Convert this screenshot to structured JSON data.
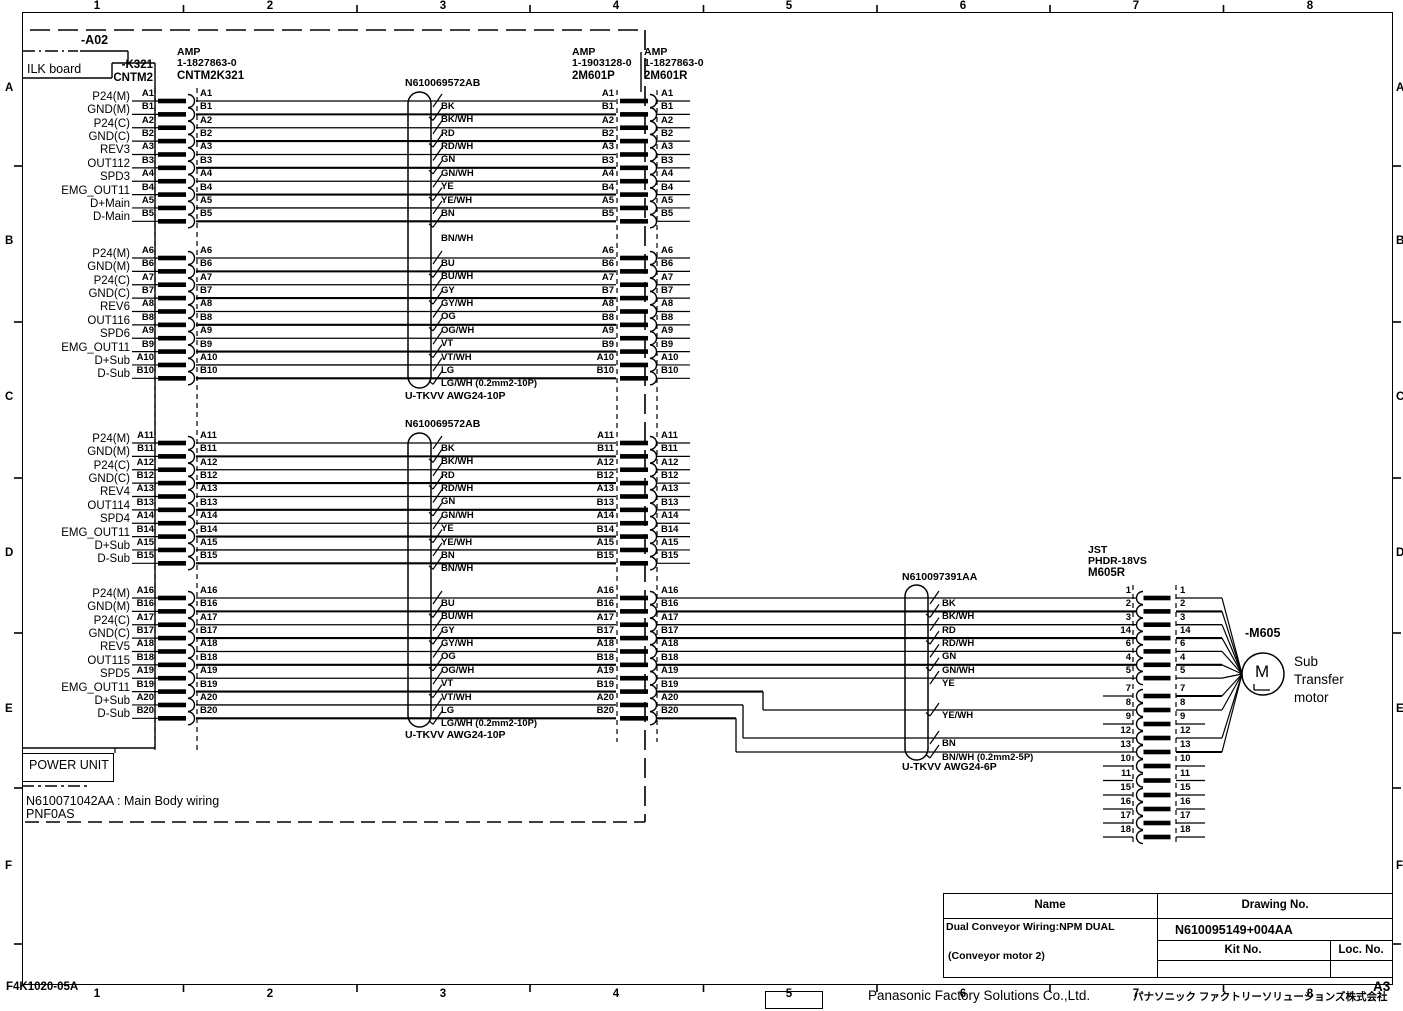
{
  "frame": {
    "zone_cols": [
      "1",
      "2",
      "3",
      "4",
      "5",
      "6",
      "7",
      "8"
    ],
    "zone_rows": [
      "A",
      "B",
      "C",
      "D",
      "E",
      "F"
    ],
    "sheet_code": "F4K1020-05A",
    "paper_size": "A3",
    "footer_company_en": "Panasonic Factory Solutions Co.,Ltd.",
    "footer_company_jp": "パナソニック ファクトリーソリューションズ株式会社"
  },
  "unit": {
    "ref": "-A02",
    "board": "ILK board",
    "power_unit": "POWER UNIT",
    "main_body_wiring": "N610071042AA : Main Body wiring",
    "board_code": "PNF0AS"
  },
  "connectors": {
    "cntm2": {
      "ref": "-K321",
      "name": "CNTM2"
    },
    "cntm2k321": {
      "maker": "AMP",
      "part": "1-1827863-0",
      "name": "CNTM2K321"
    },
    "m601p": {
      "maker": "AMP",
      "part": "1-1903128-0",
      "name": "2M601P"
    },
    "m601r": {
      "maker": "AMP",
      "part": "1-1827863-0",
      "name": "2M601R"
    },
    "m605r": {
      "maker": "JST",
      "part": "PHDR-18VS",
      "name": "M605R"
    }
  },
  "cables": {
    "cable1": {
      "part": "N610069572AB",
      "spec": "U-TKVV AWG24-10P"
    },
    "cable2": {
      "part": "N610069572AB",
      "spec": "U-TKVV AWG24-10P"
    },
    "cable3": {
      "part": "N610097391AA",
      "spec": "U-TKVV AWG24-6P"
    }
  },
  "motor": {
    "ref": "-M605",
    "symbol": "M",
    "label_lines": [
      "Sub",
      "Transfer",
      "motor"
    ]
  },
  "title_block": {
    "name_header": "Name",
    "drawing_no_header": "Drawing No.",
    "name_line1": "Dual Conveyor Wiring:NPM DUAL",
    "name_line2": "(Conveyor motor 2)",
    "drawing_no": "N610095149+004AA",
    "kit_no_header": "Kit No.",
    "loc_no_header": "Loc. No.",
    "kit_no": "",
    "loc_no": ""
  },
  "wiring_rows": [
    {
      "signal": "P24(M)",
      "pin": "A1",
      "color": "BK"
    },
    {
      "signal": "GND(M)",
      "pin": "B1",
      "color": "BK/WH"
    },
    {
      "signal": "P24(C)",
      "pin": "A2",
      "color": "RD"
    },
    {
      "signal": "GND(C)",
      "pin": "B2",
      "color": "RD/WH"
    },
    {
      "signal": "REV3",
      "pin": "A3",
      "color": "GN"
    },
    {
      "signal": "OUT112",
      "pin": "B3",
      "color": "GN/WH"
    },
    {
      "signal": "SPD3",
      "pin": "A4",
      "color": "YE"
    },
    {
      "signal": "EMG_OUT11",
      "pin": "B4",
      "color": "YE/WH"
    },
    {
      "signal": "D+Main",
      "pin": "A5",
      "color": "BN"
    },
    {
      "signal": "D-Main",
      "pin": "B5",
      "color": "BN/WH"
    },
    {
      "signal": "P24(M)",
      "pin": "A6",
      "color": "BU"
    },
    {
      "signal": "GND(M)",
      "pin": "B6",
      "color": "BU/WH"
    },
    {
      "signal": "P24(C)",
      "pin": "A7",
      "color": "GY"
    },
    {
      "signal": "GND(C)",
      "pin": "B7",
      "color": "GY/WH"
    },
    {
      "signal": "REV6",
      "pin": "A8",
      "color": "OG"
    },
    {
      "signal": "OUT116",
      "pin": "B8",
      "color": "OG/WH"
    },
    {
      "signal": "SPD6",
      "pin": "A9",
      "color": "VT"
    },
    {
      "signal": "EMG_OUT11",
      "pin": "B9",
      "color": "VT/WH"
    },
    {
      "signal": "D+Sub",
      "pin": "A10",
      "color": "LG"
    },
    {
      "signal": "D-Sub",
      "pin": "B10",
      "color": "LG/WH (0.2mm2-10P)"
    },
    {
      "signal": "P24(M)",
      "pin": "A11",
      "color": "BK"
    },
    {
      "signal": "GND(M)",
      "pin": "B11",
      "color": "BK/WH"
    },
    {
      "signal": "P24(C)",
      "pin": "A12",
      "color": "RD"
    },
    {
      "signal": "GND(C)",
      "pin": "B12",
      "color": "RD/WH"
    },
    {
      "signal": "REV4",
      "pin": "A13",
      "color": "GN"
    },
    {
      "signal": "OUT114",
      "pin": "B13",
      "color": "GN/WH"
    },
    {
      "signal": "SPD4",
      "pin": "A14",
      "color": "YE"
    },
    {
      "signal": "EMG_OUT11",
      "pin": "B14",
      "color": "YE/WH"
    },
    {
      "signal": "D+Sub",
      "pin": "A15",
      "color": "BN"
    },
    {
      "signal": "D-Sub",
      "pin": "B15",
      "color": "BN/WH"
    },
    {
      "signal": "P24(M)",
      "pin": "A16",
      "color": "BU"
    },
    {
      "signal": "GND(M)",
      "pin": "B16",
      "color": "BU/WH"
    },
    {
      "signal": "P24(C)",
      "pin": "A17",
      "color": "GY"
    },
    {
      "signal": "GND(C)",
      "pin": "B17",
      "color": "GY/WH"
    },
    {
      "signal": "REV5",
      "pin": "A18",
      "color": "OG"
    },
    {
      "signal": "OUT115",
      "pin": "B18",
      "color": "OG/WH"
    },
    {
      "signal": "SPD5",
      "pin": "A19",
      "color": "VT"
    },
    {
      "signal": "EMG_OUT11",
      "pin": "B19",
      "color": "VT/WH"
    },
    {
      "signal": "D+Sub",
      "pin": "A20",
      "color": "LG"
    },
    {
      "signal": "D-Sub",
      "pin": "B20",
      "color": "LG/WH (0.2mm2-10P)"
    }
  ],
  "motor_cable_wires": [
    {
      "color": "BK",
      "pin": "1"
    },
    {
      "color": "BK/WH",
      "pin": "2"
    },
    {
      "color": "RD",
      "pin": "3"
    },
    {
      "color": "RD/WH",
      "pin": "14"
    },
    {
      "color": "GN",
      "pin": "6"
    },
    {
      "color": "GN/WH",
      "pin": "4"
    },
    {
      "color": "YE",
      "pin": "5"
    },
    {
      "color": "YE/WH",
      "pin": "8"
    },
    {
      "color": "BN",
      "pin": "12"
    },
    {
      "color": "BN/WH (0.2mm2-5P)",
      "pin": "13"
    }
  ],
  "motor_connector_rows": [
    {
      "pin": "1",
      "from_cable": true,
      "to_motor": true
    },
    {
      "pin": "2",
      "from_cable": true,
      "to_motor": true
    },
    {
      "pin": "3",
      "from_cable": true,
      "to_motor": true
    },
    {
      "pin": "14",
      "from_cable": true,
      "to_motor": true
    },
    {
      "pin": "6",
      "from_cable": true,
      "to_motor": true
    },
    {
      "pin": "4",
      "from_cable": true,
      "to_motor": true
    },
    {
      "pin": "5",
      "from_cable": true,
      "to_motor": true
    },
    {
      "pin": "7",
      "from_cable": false,
      "to_motor": true
    },
    {
      "pin": "8",
      "from_cable": true,
      "to_motor": true
    },
    {
      "pin": "9",
      "from_cable": false,
      "to_motor": false
    },
    {
      "pin": "12",
      "from_cable": true,
      "to_motor": true
    },
    {
      "pin": "13",
      "from_cable": true,
      "to_motor": true
    },
    {
      "pin": "10",
      "from_cable": false,
      "to_motor": false
    },
    {
      "pin": "11",
      "from_cable": false,
      "to_motor": false
    },
    {
      "pin": "15",
      "from_cable": false,
      "to_motor": false
    },
    {
      "pin": "16",
      "from_cable": false,
      "to_motor": false
    },
    {
      "pin": "17",
      "from_cable": false,
      "to_motor": false
    },
    {
      "pin": "18",
      "from_cable": false,
      "to_motor": false
    }
  ]
}
